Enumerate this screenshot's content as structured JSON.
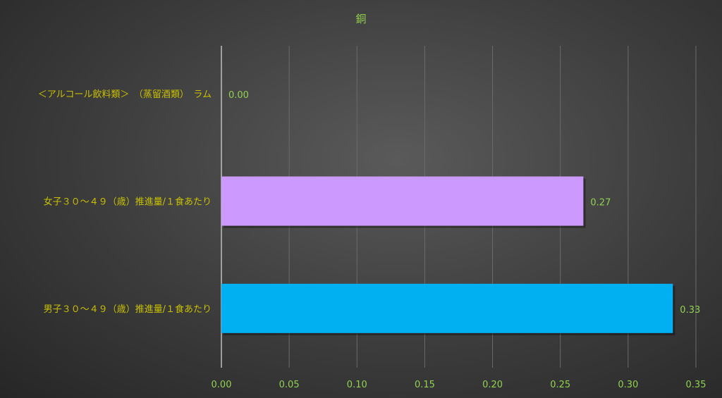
{
  "chart_data": {
    "type": "bar",
    "orientation": "horizontal",
    "title": "銅",
    "categories": [
      "＜アルコール飲料類＞　（蒸留酒類）　ラム",
      "女子３０～４９（歳）推進量/１食あたり",
      "男子３０～４９（歳）推進量/１食あたり"
    ],
    "values": [
      0.0,
      0.267,
      0.333
    ],
    "data_labels": [
      "0.00",
      "0.27",
      "0.33"
    ],
    "bar_colors": [
      "#cc99ff",
      "#cc99ff",
      "#00b0f0"
    ],
    "xlim": [
      0,
      0.35
    ],
    "xticks": [
      "0.00",
      "0.05",
      "0.10",
      "0.15",
      "0.20",
      "0.25",
      "0.30",
      "0.35"
    ],
    "grid": "vertical",
    "legend": "none",
    "colors": {
      "title": "#92d050",
      "category_text": "#c8c000",
      "tick_text": "#92d050",
      "label_text": "#92d050",
      "grid": "#6a6a6a"
    }
  }
}
